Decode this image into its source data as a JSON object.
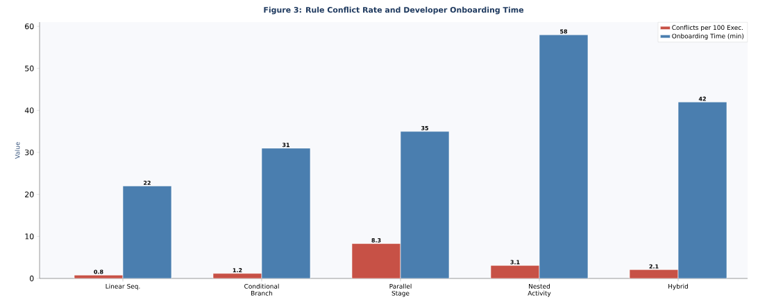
{
  "chart_data": {
    "type": "bar",
    "title": "Figure 3: Rule Conflict Rate and Developer Onboarding Time",
    "ylabel": "Value",
    "categories": [
      "Linear Seq.",
      "Conditional Branch",
      "Parallel Stage",
      "Nested Activity",
      "Hybrid"
    ],
    "series": [
      {
        "name": "Conflicts per 100 Exec.",
        "color": "#c75146",
        "values": [
          0.8,
          1.2,
          8.3,
          3.1,
          2.1
        ]
      },
      {
        "name": "Onboarding Time (min)",
        "color": "#4a7eaf",
        "values": [
          22,
          31,
          35,
          58,
          42
        ]
      }
    ],
    "ylim": [
      0,
      61
    ],
    "yticks": [
      0,
      10,
      20,
      30,
      40,
      50,
      60
    ],
    "data_labels": true,
    "legend": "top right",
    "grid": false
  }
}
